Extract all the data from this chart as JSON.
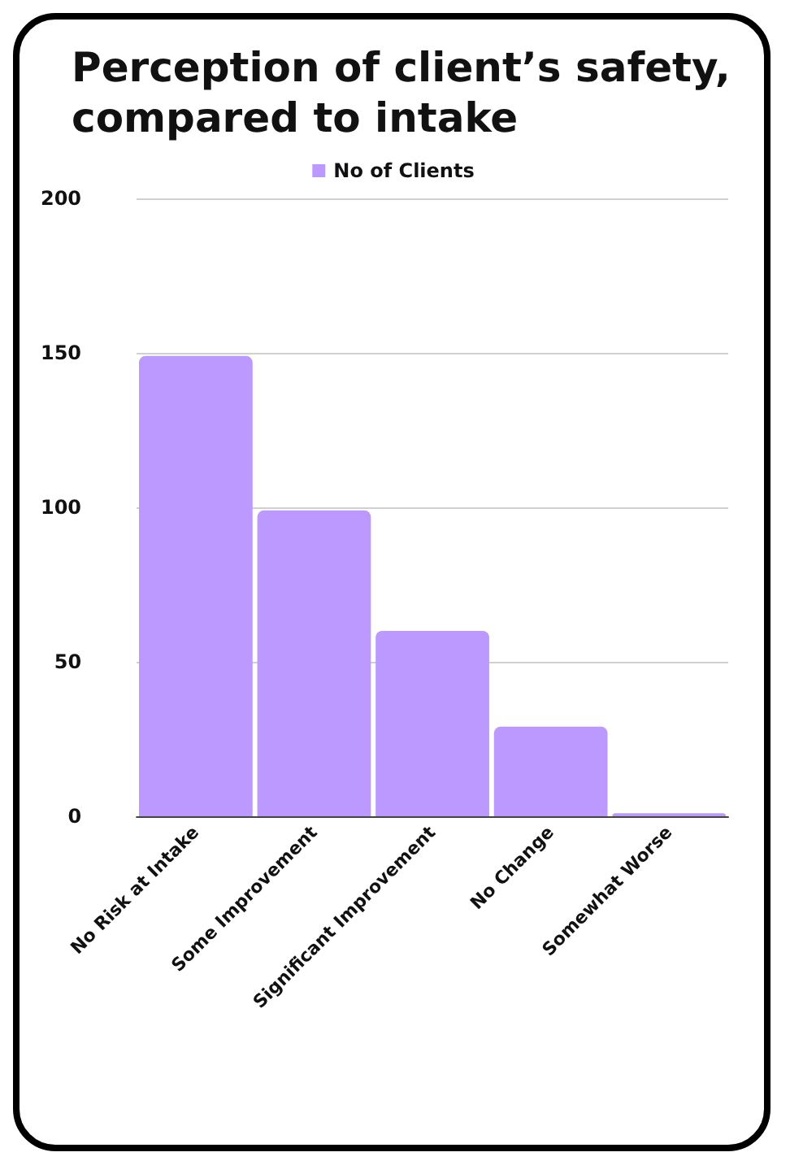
{
  "chart_data": {
    "type": "bar",
    "title": "Perception of client’s safety, compared to intake",
    "categories": [
      "No Risk at Intake",
      "Some Improvement",
      "Significant Improvement",
      "No Change",
      "Somewhat Worse"
    ],
    "series": [
      {
        "name": "No of Clients",
        "color": "#bb99ff",
        "values": [
          149,
          99,
          60,
          29,
          1
        ]
      }
    ],
    "ylim": [
      0,
      200
    ],
    "yticks": [
      0,
      50,
      100,
      150,
      200
    ],
    "grid": "y",
    "legend": "top"
  }
}
